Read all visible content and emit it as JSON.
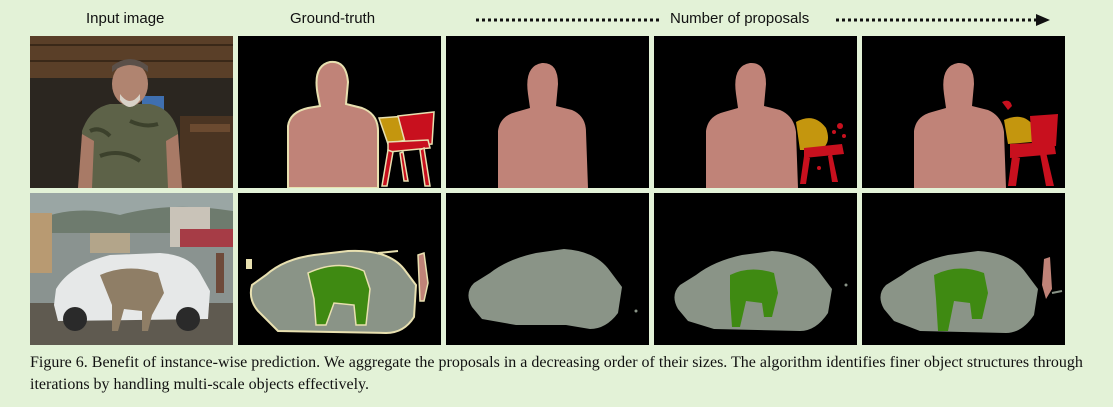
{
  "figure": {
    "headers": {
      "input_image": "Input image",
      "ground_truth": "Ground-truth",
      "proposals": "Number of proposals"
    },
    "caption": "Figure 6.  Benefit of instance-wise prediction. We aggregate the proposals in a decreasing order of their sizes. The algorithm identifies finer object structures through iterations by handling multi-scale objects effectively.",
    "colors": {
      "background": "#e3f2d7",
      "person": "#c08378",
      "chair_red": "#c8101e",
      "chair_gold": "#c4960e",
      "car": "#8a9487",
      "cow": "#3f8a12",
      "outline": "#e8e0b0"
    },
    "rows": [
      {
        "description_panels": [
          "photo-man",
          "gt",
          "proposal-1",
          "proposal-2",
          "proposal-3"
        ]
      },
      {
        "description_panels": [
          "photo-street",
          "gt",
          "proposal-1",
          "proposal-2",
          "proposal-3"
        ]
      }
    ]
  }
}
